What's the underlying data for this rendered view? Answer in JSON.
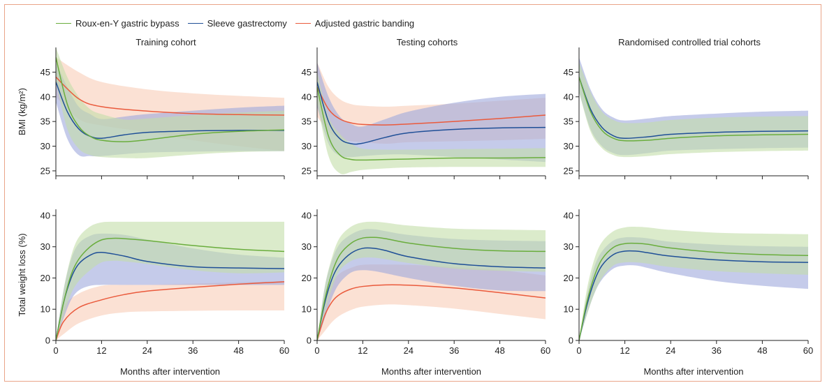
{
  "colors": {
    "rygb": "#6aad3d",
    "sleeve": "#1f4f97",
    "band": "#ea5a3c",
    "rygb_band": "#c3dea8",
    "sleeve_band": "#9fa9dc",
    "band_band": "#f8cdb8",
    "frame": "#e9a489"
  },
  "legend": [
    {
      "key": "rygb",
      "label": "Roux-en-Y gastric bypass"
    },
    {
      "key": "sleeve",
      "label": "Sleeve gastrectomy"
    },
    {
      "key": "band",
      "label": "Adjusted gastric banding"
    }
  ],
  "chart_data": [
    {
      "type": "line",
      "panel": "top-left",
      "title": "Training cohort",
      "xlabel": "",
      "ylabel": "BMI (kg/m²)",
      "xlim": [
        0,
        60
      ],
      "ylim": [
        24,
        50
      ],
      "xticks": [
        0,
        12,
        24,
        36,
        48,
        60
      ],
      "yticks": [
        25,
        30,
        35,
        40,
        45
      ],
      "series": [
        {
          "key": "band",
          "x": [
            0,
            6,
            12,
            24,
            36,
            48,
            60
          ],
          "y": [
            44,
            39.6,
            38,
            37.1,
            36.6,
            36.4,
            36.3
          ],
          "lower": [
            40,
            35.5,
            34.2,
            32.8,
            31.2,
            30,
            29
          ],
          "upper": [
            48,
            45,
            43,
            41.5,
            40.7,
            40.2,
            39.8
          ]
        },
        {
          "key": "sleeve",
          "x": [
            0,
            3,
            6,
            9,
            12,
            18,
            24,
            36,
            48,
            60
          ],
          "y": [
            43,
            37,
            33.5,
            32,
            31.6,
            32.3,
            32.8,
            33.1,
            33.2,
            33.2
          ],
          "lower": [
            39,
            31.5,
            28.2,
            28,
            28,
            28.4,
            28.7,
            28.9,
            29,
            29
          ],
          "upper": [
            47,
            42,
            38,
            36.5,
            35.5,
            36,
            36.5,
            37.2,
            37.8,
            38.2
          ]
        },
        {
          "key": "rygb",
          "x": [
            0,
            3,
            6,
            9,
            12,
            18,
            24,
            36,
            48,
            60
          ],
          "y": [
            48,
            38.5,
            34,
            32,
            31.2,
            30.9,
            31.3,
            32.4,
            33,
            33.3
          ],
          "lower": [
            43,
            33.5,
            29.5,
            28.2,
            27.8,
            27.6,
            27.6,
            28.3,
            28.8,
            29
          ],
          "upper": [
            50,
            44,
            40,
            37.5,
            36.5,
            35.4,
            35.6,
            36.3,
            36.8,
            37.2
          ]
        }
      ]
    },
    {
      "type": "line",
      "panel": "top-middle",
      "title": "Testing cohorts",
      "xlabel": "",
      "ylabel": "",
      "xlim": [
        0,
        60
      ],
      "ylim": [
        24,
        50
      ],
      "xticks": [
        0,
        12,
        24,
        36,
        48,
        60
      ],
      "yticks": [
        25,
        30,
        35,
        40,
        45
      ],
      "series": [
        {
          "key": "band",
          "x": [
            0,
            3,
            6,
            9,
            12,
            18,
            24,
            36,
            48,
            60
          ],
          "y": [
            42,
            37.5,
            35.5,
            34.7,
            34.4,
            34.3,
            34.5,
            35,
            35.6,
            36.3
          ],
          "lower": [
            36,
            33,
            31.5,
            31,
            30.8,
            30.5,
            30.8,
            31,
            31.2,
            31.5
          ],
          "upper": [
            47,
            42,
            39.5,
            38.5,
            38.2,
            38,
            38.2,
            38.6,
            39.2,
            39.8
          ]
        },
        {
          "key": "sleeve",
          "x": [
            0,
            3,
            6,
            9,
            12,
            18,
            24,
            36,
            48,
            60
          ],
          "y": [
            43,
            35,
            31.5,
            30.5,
            30.6,
            31.8,
            32.7,
            33.4,
            33.7,
            33.8
          ],
          "lower": [
            38,
            30.5,
            28,
            27.8,
            28,
            28.3,
            28.3,
            27.8,
            27.3,
            26.8
          ],
          "upper": [
            47,
            40,
            36,
            34.5,
            34,
            35.5,
            37,
            38.8,
            40,
            40.6
          ]
        },
        {
          "key": "rygb",
          "x": [
            0,
            3,
            6,
            9,
            12,
            18,
            24,
            36,
            48,
            60
          ],
          "y": [
            42,
            32,
            28.2,
            27.3,
            27.2,
            27.3,
            27.4,
            27.6,
            27.6,
            27.7
          ],
          "lower": [
            39,
            28,
            24.5,
            24.8,
            25.2,
            25.5,
            25.7,
            25.8,
            25.8,
            25.8
          ],
          "upper": [
            45,
            36,
            32.5,
            30.5,
            29.5,
            29.3,
            29.3,
            29.4,
            29.5,
            29.6
          ]
        }
      ]
    },
    {
      "type": "line",
      "panel": "top-right",
      "title": "Randomised controlled trial cohorts",
      "xlabel": "",
      "ylabel": "",
      "xlim": [
        0,
        60
      ],
      "ylim": [
        24,
        50
      ],
      "xticks": [
        0,
        12,
        24,
        36,
        48,
        60
      ],
      "yticks": [
        25,
        30,
        35,
        40,
        45
      ],
      "series": [
        {
          "key": "sleeve",
          "x": [
            0,
            3,
            6,
            9,
            12,
            18,
            24,
            36,
            48,
            60
          ],
          "y": [
            44,
            37.5,
            33.8,
            32.1,
            31.6,
            31.9,
            32.4,
            32.8,
            33,
            33.1
          ],
          "lower": [
            41,
            33.5,
            30,
            28.6,
            28.2,
            28.6,
            29.1,
            29.4,
            29.6,
            29.7
          ],
          "upper": [
            48,
            41.5,
            37.5,
            35.8,
            35.2,
            35.6,
            36.1,
            36.6,
            37,
            37.2
          ]
        },
        {
          "key": "rygb",
          "x": [
            0,
            3,
            6,
            9,
            12,
            18,
            24,
            36,
            48,
            60
          ],
          "y": [
            44,
            37,
            33.2,
            31.6,
            31.1,
            31.2,
            31.6,
            32.1,
            32.3,
            32.4
          ],
          "lower": [
            41,
            33,
            29.6,
            28.2,
            27.8,
            28,
            28.4,
            28.8,
            29,
            29.1
          ],
          "upper": [
            47,
            41,
            37,
            35.3,
            34.7,
            34.8,
            35.3,
            35.8,
            36,
            36.1
          ]
        }
      ]
    },
    {
      "type": "line",
      "panel": "bottom-left",
      "title": "",
      "xlabel": "Months after intervention",
      "ylabel": "Total weight loss (%)",
      "xlim": [
        0,
        60
      ],
      "ylim": [
        0,
        42
      ],
      "xticks": [
        0,
        12,
        24,
        36,
        48,
        60
      ],
      "yticks": [
        0,
        10,
        20,
        30,
        40
      ],
      "series": [
        {
          "key": "band",
          "x": [
            0,
            2,
            6,
            12,
            18,
            24,
            36,
            48,
            60
          ],
          "y": [
            0,
            6,
            10.5,
            13,
            14.7,
            15.8,
            17,
            18,
            18.8
          ],
          "lower": [
            0,
            2,
            5.5,
            8,
            9,
            9.3,
            9.5,
            9.6,
            9.6
          ],
          "upper": [
            0,
            10.5,
            15,
            17.5,
            17.8,
            17.8,
            18.2,
            18.6,
            19
          ]
        },
        {
          "key": "sleeve",
          "x": [
            0,
            2,
            4,
            6,
            9,
            12,
            18,
            24,
            36,
            48,
            60
          ],
          "y": [
            0,
            12,
            20,
            24.5,
            27.3,
            28.2,
            27,
            25.3,
            23.6,
            23.2,
            23
          ],
          "lower": [
            0,
            7,
            13,
            16,
            17.5,
            17.8,
            17.8,
            17.8,
            17.8,
            17.8,
            17.8
          ],
          "upper": [
            0,
            16,
            26,
            31,
            33.5,
            34.2,
            33.8,
            32.3,
            29.5,
            27.5,
            26.5
          ]
        },
        {
          "key": "rygb",
          "x": [
            0,
            2,
            4,
            6,
            9,
            12,
            15,
            18,
            24,
            36,
            48,
            60
          ],
          "y": [
            0,
            12,
            21,
            26,
            30,
            32.2,
            32.7,
            32.6,
            32,
            30.4,
            29.2,
            28.5
          ],
          "lower": [
            0,
            8,
            15,
            19,
            22.5,
            25,
            25.5,
            25.3,
            24.5,
            22.5,
            21.5,
            21.8
          ],
          "upper": [
            0,
            16,
            27,
            33,
            36.5,
            37.8,
            38,
            38,
            38,
            38,
            38,
            38
          ]
        }
      ]
    },
    {
      "type": "line",
      "panel": "bottom-middle",
      "title": "",
      "xlabel": "Months after intervention",
      "ylabel": "",
      "xlim": [
        0,
        60
      ],
      "ylim": [
        0,
        42
      ],
      "xticks": [
        0,
        12,
        24,
        36,
        48,
        60
      ],
      "yticks": [
        0,
        10,
        20,
        30,
        40
      ],
      "series": [
        {
          "key": "band",
          "x": [
            0,
            2,
            4,
            6,
            9,
            12,
            18,
            24,
            36,
            48,
            60
          ],
          "y": [
            0,
            8,
            12.5,
            14.8,
            16.5,
            17.3,
            17.8,
            17.7,
            16.8,
            15.3,
            13.6
          ],
          "lower": [
            0,
            3,
            6,
            8,
            9.8,
            10.8,
            11.5,
            11.3,
            10.2,
            8.5,
            6.8
          ],
          "upper": [
            0,
            13,
            18.5,
            21.5,
            23.3,
            24.2,
            24.3,
            24.2,
            23.5,
            22.5,
            20.8
          ]
        },
        {
          "key": "sleeve",
          "x": [
            0,
            2,
            4,
            6,
            9,
            12,
            15,
            18,
            24,
            36,
            48,
            60
          ],
          "y": [
            0,
            12,
            20,
            24.5,
            28,
            29.5,
            29.5,
            28.8,
            26.8,
            24.6,
            23.6,
            23.2
          ],
          "lower": [
            0,
            7,
            14,
            18.5,
            21.8,
            22.5,
            22.2,
            21.5,
            20,
            17.5,
            16,
            15.8
          ],
          "upper": [
            0,
            17,
            26,
            31,
            34,
            35.5,
            35.6,
            35,
            33.8,
            32.5,
            32,
            31.8
          ]
        },
        {
          "key": "rygb",
          "x": [
            0,
            2,
            4,
            6,
            9,
            12,
            15,
            18,
            24,
            36,
            48,
            60
          ],
          "y": [
            0,
            13,
            22,
            27.5,
            31.2,
            32.8,
            33,
            32.6,
            31.2,
            29.5,
            28.7,
            28.5
          ],
          "lower": [
            0,
            9,
            17,
            22.5,
            25.5,
            26.5,
            26.5,
            26,
            24.8,
            23,
            22.3,
            22
          ],
          "upper": [
            0,
            17,
            27,
            33,
            36.5,
            37.8,
            38,
            37.7,
            36.8,
            35.8,
            35.5,
            35.3
          ]
        }
      ]
    },
    {
      "type": "line",
      "panel": "bottom-right",
      "title": "",
      "xlabel": "Months after intervention",
      "ylabel": "",
      "xlim": [
        0,
        60
      ],
      "ylim": [
        0,
        42
      ],
      "xticks": [
        0,
        12,
        24,
        36,
        48,
        60
      ],
      "yticks": [
        0,
        10,
        20,
        30,
        40
      ],
      "series": [
        {
          "key": "sleeve",
          "x": [
            0,
            2,
            4,
            6,
            9,
            12,
            15,
            18,
            24,
            36,
            48,
            60
          ],
          "y": [
            0,
            11,
            19,
            24,
            27.5,
            28.6,
            28.6,
            28.1,
            27,
            25.8,
            25.2,
            25
          ],
          "lower": [
            0,
            8,
            15,
            19.5,
            23,
            24,
            24,
            23.2,
            21.5,
            19,
            17.5,
            16.5
          ],
          "upper": [
            0,
            14,
            23.5,
            28.5,
            32,
            33,
            33,
            32.7,
            31.6,
            30.7,
            30.2,
            30
          ]
        },
        {
          "key": "rygb",
          "x": [
            0,
            2,
            4,
            6,
            9,
            12,
            15,
            18,
            24,
            36,
            48,
            60
          ],
          "y": [
            0,
            12,
            20.5,
            26,
            29.8,
            31,
            31.1,
            30.8,
            29.6,
            28.2,
            27.5,
            27.2
          ],
          "lower": [
            0,
            8,
            15,
            20,
            24,
            25,
            25,
            24.6,
            23.5,
            22.2,
            21.5,
            21
          ],
          "upper": [
            0,
            16,
            26,
            31.5,
            35,
            36.2,
            36.4,
            36.2,
            35.4,
            34.5,
            34.2,
            34
          ]
        }
      ]
    }
  ]
}
